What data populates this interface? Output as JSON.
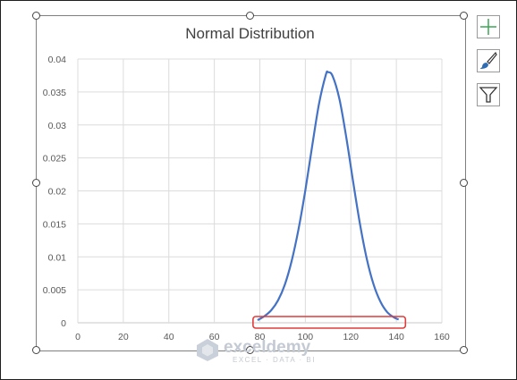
{
  "chart_data": {
    "type": "line",
    "title": "Normal Distribution",
    "xlabel": "",
    "ylabel": "",
    "xlim": [
      0,
      160
    ],
    "ylim": [
      0,
      0.04
    ],
    "x_ticks": [
      "0",
      "20",
      "40",
      "60",
      "80",
      "100",
      "120",
      "140",
      "160"
    ],
    "y_ticks": [
      "0",
      "0.005",
      "0.01",
      "0.015",
      "0.02",
      "0.025",
      "0.03",
      "0.035",
      "0.04"
    ],
    "grid": true,
    "legend": "none",
    "series": [
      {
        "color": "#4472c4",
        "points": [
          [
            79,
            0.0004
          ],
          [
            82,
            0.001
          ],
          [
            85,
            0.0019
          ],
          [
            88,
            0.0034
          ],
          [
            91,
            0.0058
          ],
          [
            94,
            0.0094
          ],
          [
            97,
            0.0142
          ],
          [
            100,
            0.0201
          ],
          [
            103,
            0.0268
          ],
          [
            106,
            0.0332
          ],
          [
            109,
            0.0376
          ],
          [
            110,
            0.038
          ],
          [
            112,
            0.0374
          ],
          [
            115,
            0.0339
          ],
          [
            118,
            0.0281
          ],
          [
            121,
            0.0214
          ],
          [
            124,
            0.015
          ],
          [
            127,
            0.0097
          ],
          [
            130,
            0.0058
          ],
          [
            133,
            0.0032
          ],
          [
            136,
            0.0016
          ],
          [
            139,
            0.0008
          ],
          [
            141,
            0.0005
          ]
        ]
      }
    ],
    "highlight": {
      "x_range": [
        77,
        144
      ],
      "color": "#e03c3c"
    }
  },
  "side_buttons": [
    {
      "icon": "plus-icon",
      "color": "#3aa655"
    },
    {
      "icon": "brush-icon",
      "color": "#2e6db4"
    },
    {
      "icon": "filter-icon",
      "color": "#333333"
    }
  ],
  "watermark": {
    "name": "exceldemy",
    "subtitle": "EXCEL · DATA · BI"
  }
}
